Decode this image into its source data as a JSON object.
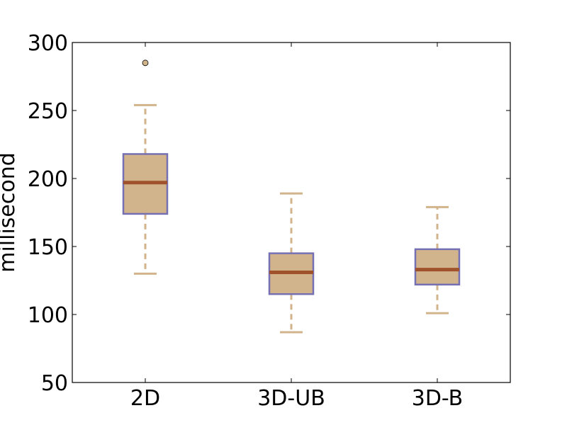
{
  "chart_data": {
    "type": "boxplot",
    "title": "",
    "xlabel": "",
    "ylabel": "millisecond",
    "ylim": [
      50,
      300
    ],
    "yticks": [
      50,
      100,
      150,
      200,
      250,
      300
    ],
    "grid": false,
    "categories": [
      "2D",
      "3D-UB",
      "3D-B"
    ],
    "boxes": [
      {
        "category": "2D",
        "whisker_low": 130,
        "q1": 174,
        "median": 197,
        "q3": 218,
        "whisker_high": 254,
        "outliers": [
          285
        ]
      },
      {
        "category": "3D-UB",
        "whisker_low": 87,
        "q1": 115,
        "median": 131,
        "q3": 145,
        "whisker_high": 189,
        "outliers": []
      },
      {
        "category": "3D-B",
        "whisker_low": 101,
        "q1": 122,
        "median": 133,
        "q3": 148,
        "whisker_high": 179,
        "outliers": []
      }
    ],
    "colors": {
      "box_fill": "#d2b48c",
      "box_edge": "#7570b3",
      "median": "#a0522d",
      "whisker": "#d2b48c",
      "outlier_fill": "#d2b48c"
    }
  }
}
